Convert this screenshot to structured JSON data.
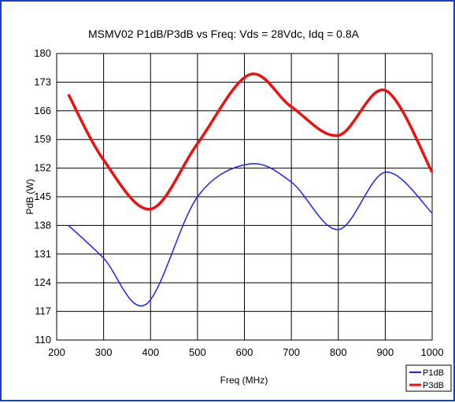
{
  "chart_data": {
    "type": "line",
    "title": "MSMV02 P1dB/P3dB vs Freq: Vds = 28Vdc, Idq = 0.8A",
    "xlabel": "Freq (MHz)",
    "ylabel": "PdB (W)",
    "xlim": [
      200,
      1000
    ],
    "ylim": [
      110,
      180
    ],
    "xticks": [
      "200",
      "300",
      "400",
      "500",
      "600",
      "700",
      "800",
      "900",
      "1000"
    ],
    "yticks": [
      "180",
      "173",
      "166",
      "159",
      "152",
      "145",
      "138",
      "131",
      "124",
      "117",
      "110"
    ],
    "grid": true,
    "legend": "bottom-right",
    "series": [
      {
        "name": "P1dB",
        "color": "#1f1fff",
        "x": [
          225,
          300,
          390,
          500,
          610,
          700,
          800,
          900,
          1000
        ],
        "y": [
          138,
          130,
          118.7,
          145,
          153,
          148.6,
          137,
          151,
          141
        ]
      },
      {
        "name": "P3dB",
        "color": "#ee1111",
        "x": [
          225,
          300,
          400,
          500,
          610,
          700,
          800,
          900,
          1000
        ],
        "y": [
          170,
          154,
          142,
          158,
          174.8,
          167,
          160,
          171,
          151
        ]
      }
    ]
  }
}
